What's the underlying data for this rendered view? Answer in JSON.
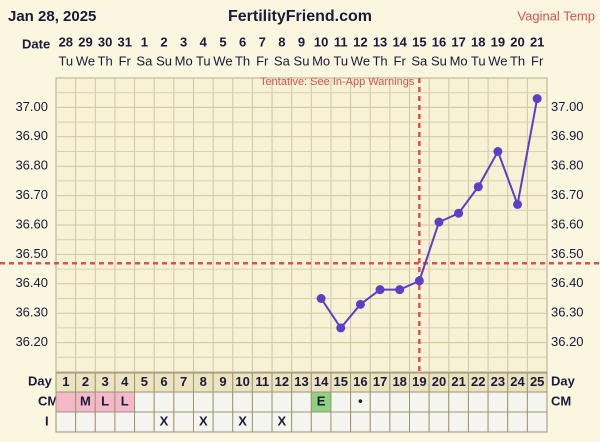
{
  "chart_data": {
    "type": "line",
    "header_date": "Jan 28, 2025",
    "site": "FertilityFriend.com",
    "temp_label": "Vaginal Temp",
    "date_label": "Date",
    "day_label": "Day",
    "cm_label": "CM",
    "i_label": "I",
    "annotation": "Tentative: See In-App Warnings",
    "dates": [
      "28",
      "29",
      "30",
      "31",
      "1",
      "2",
      "3",
      "4",
      "5",
      "6",
      "7",
      "8",
      "9",
      "10",
      "11",
      "12",
      "13",
      "14",
      "15",
      "16",
      "17",
      "18",
      "19",
      "20",
      "21"
    ],
    "weekdays": [
      "Tu",
      "We",
      "Th",
      "Fr",
      "Sa",
      "Su",
      "Mo",
      "Tu",
      "We",
      "Th",
      "Fr",
      "Sa",
      "Su",
      "Mo",
      "Tu",
      "We",
      "Th",
      "Fr",
      "Sa",
      "Su",
      "Mo",
      "Tu",
      "We",
      "Th",
      "Fr"
    ],
    "categories": [
      "1",
      "2",
      "3",
      "4",
      "5",
      "6",
      "7",
      "8",
      "9",
      "10",
      "11",
      "12",
      "13",
      "14",
      "15",
      "16",
      "17",
      "18",
      "19",
      "20",
      "21",
      "22",
      "23",
      "24",
      "25"
    ],
    "values": [
      null,
      null,
      null,
      null,
      null,
      null,
      null,
      null,
      null,
      null,
      null,
      null,
      null,
      36.35,
      36.25,
      36.33,
      36.38,
      36.38,
      36.41,
      36.61,
      36.64,
      36.73,
      36.85,
      36.67,
      37.03
    ],
    "color": "#5b3fc4",
    "cm": [
      null,
      "M",
      "L",
      "L",
      null,
      null,
      null,
      null,
      null,
      null,
      null,
      null,
      null,
      "E",
      null,
      "•",
      null,
      null,
      null,
      null,
      null,
      null,
      null,
      null,
      null
    ],
    "intercourse": [
      null,
      null,
      null,
      null,
      null,
      "X",
      null,
      "X",
      null,
      "X",
      null,
      "X",
      null,
      null,
      null,
      null,
      null,
      null,
      null,
      null,
      null,
      null,
      null,
      null,
      null
    ],
    "coverline": 36.47,
    "ovulation_day": 19,
    "ylim": [
      36.1,
      37.1
    ],
    "yticks": [
      {
        "value": 36.2,
        "label": "36.20"
      },
      {
        "value": 36.3,
        "label": "36.30"
      },
      {
        "value": 36.4,
        "label": "36.40"
      },
      {
        "value": 36.5,
        "label": "36.50"
      },
      {
        "value": 36.6,
        "label": "36.60"
      },
      {
        "value": 36.7,
        "label": "36.70"
      },
      {
        "value": 36.8,
        "label": "36.80"
      },
      {
        "value": 36.9,
        "label": "36.90"
      },
      {
        "value": 37.0,
        "label": "37.00"
      }
    ],
    "grid": true
  }
}
